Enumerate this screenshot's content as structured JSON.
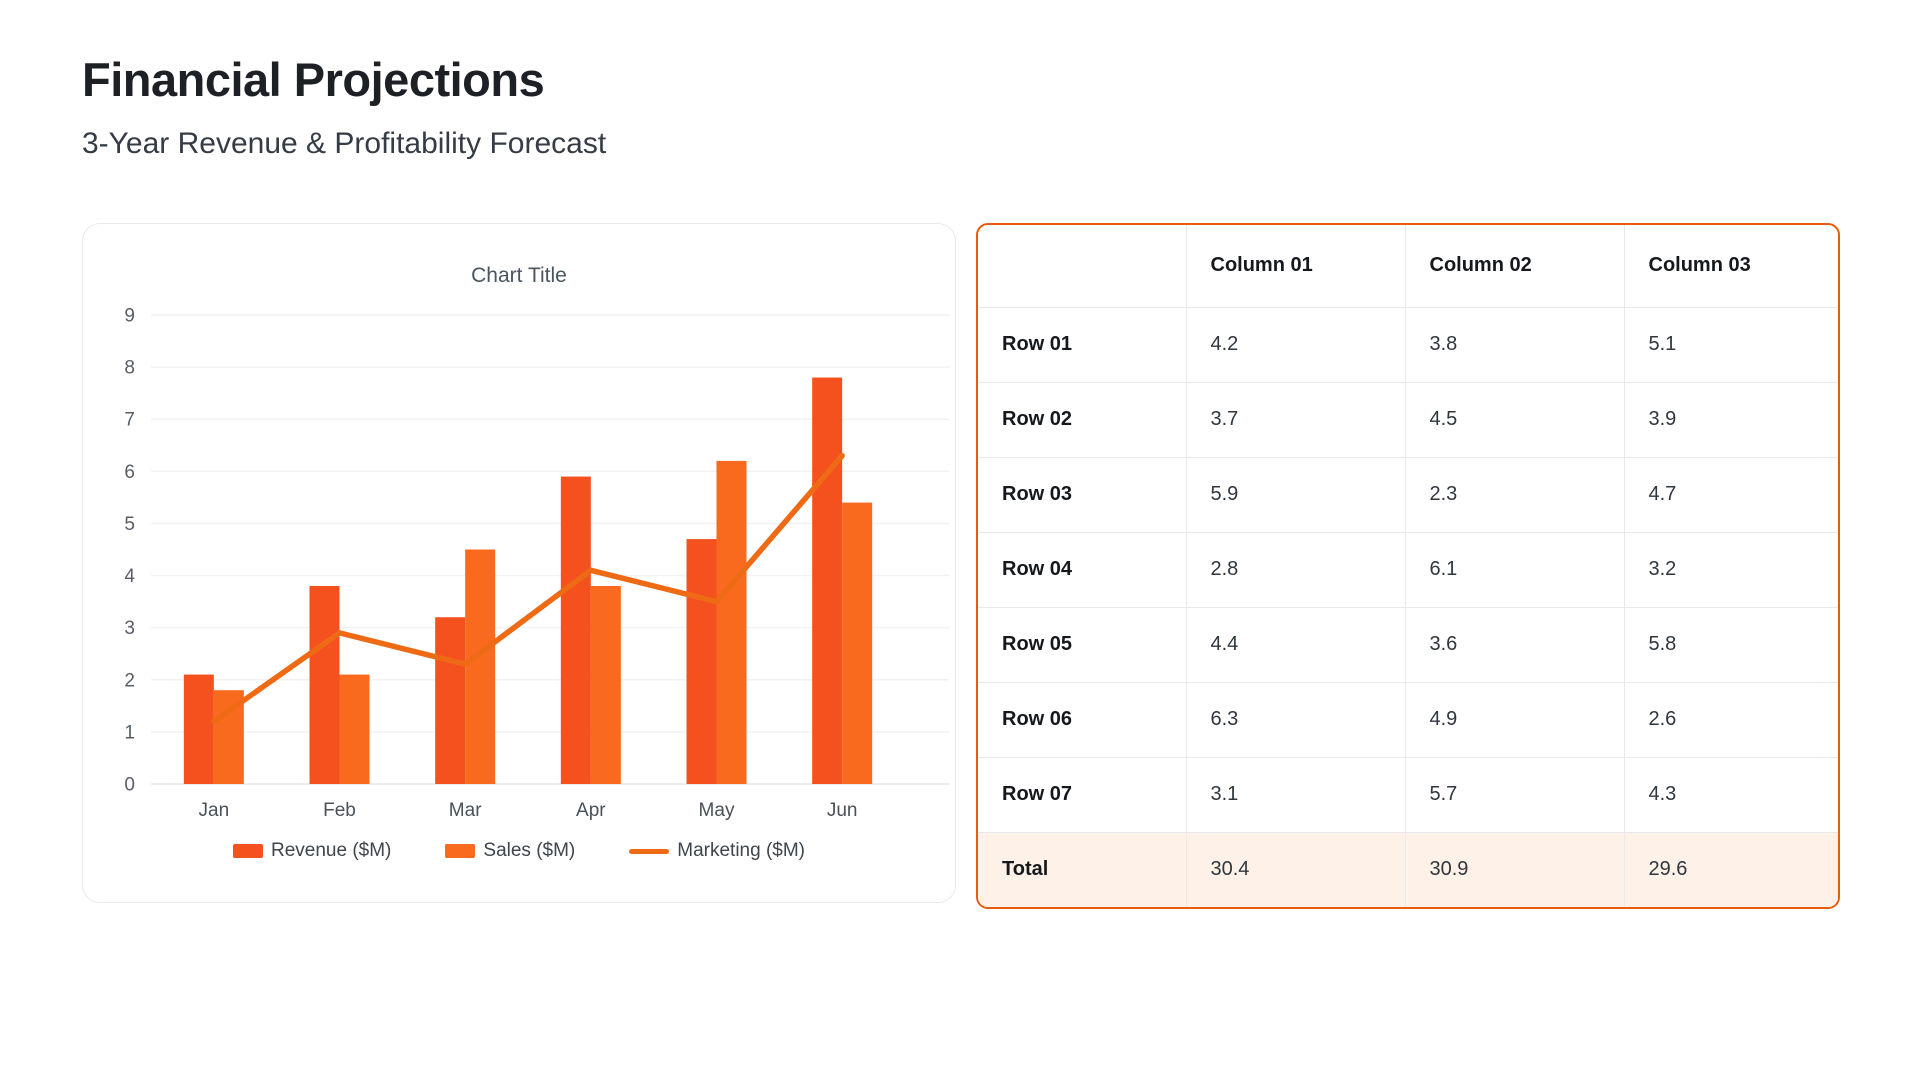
{
  "header": {
    "title": "Financial Projections",
    "subtitle": "3-Year Revenue & Profitability Forecast"
  },
  "chart_data": {
    "type": "bar",
    "title": "Chart Title",
    "categories": [
      "Jan",
      "Feb",
      "Mar",
      "Apr",
      "May",
      "Jun"
    ],
    "series": [
      {
        "name": "Revenue ($M)",
        "kind": "bar",
        "color": "#F4511E",
        "values": [
          2.1,
          3.8,
          3.2,
          5.9,
          4.7,
          7.8
        ]
      },
      {
        "name": "Sales ($M)",
        "kind": "bar",
        "color": "#FA6A1E",
        "values": [
          1.8,
          2.1,
          4.5,
          3.8,
          6.2,
          5.4
        ]
      },
      {
        "name": "Marketing ($M)",
        "kind": "line",
        "color": "#EF6A14",
        "values": [
          1.2,
          2.9,
          2.3,
          4.1,
          3.5,
          6.3
        ]
      }
    ],
    "xlabel": "",
    "ylabel": "",
    "ylim": [
      0,
      9
    ],
    "ytick_step": 1,
    "grid": "horizontal",
    "legend_position": "bottom"
  },
  "table": {
    "accent_color": "#E85D0C",
    "total_row_bg": "#FDF1E8",
    "columns": [
      "",
      "Column 01",
      "Column 02",
      "Column 03"
    ],
    "rows": [
      {
        "label": "Row 01",
        "values": [
          "4.2",
          "3.8",
          "5.1"
        ]
      },
      {
        "label": "Row 02",
        "values": [
          "3.7",
          "4.5",
          "3.9"
        ]
      },
      {
        "label": "Row 03",
        "values": [
          "5.9",
          "2.3",
          "4.7"
        ]
      },
      {
        "label": "Row 04",
        "values": [
          "2.8",
          "6.1",
          "3.2"
        ]
      },
      {
        "label": "Row 05",
        "values": [
          "4.4",
          "3.6",
          "5.8"
        ]
      },
      {
        "label": "Row 06",
        "values": [
          "6.3",
          "4.9",
          "2.6"
        ]
      },
      {
        "label": "Row 07",
        "values": [
          "3.1",
          "5.7",
          "4.3"
        ]
      }
    ],
    "total": {
      "label": "Total",
      "values": [
        "30.4",
        "30.9",
        "29.6"
      ]
    }
  }
}
